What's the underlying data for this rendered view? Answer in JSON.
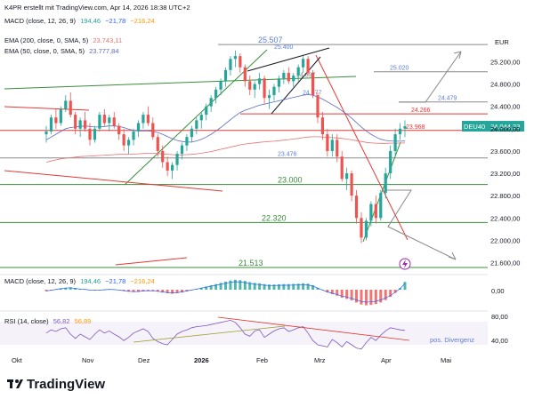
{
  "header": {
    "author_line": "K4PR erstellt mit TradingView.com, Apr 14, 2026 18:38 UTC+2",
    "macd_label": "MACD (close, 12, 26, 9)",
    "macd_values": [
      "194,46",
      "−21,78",
      "−216,24"
    ],
    "ema200_label": "EMA (200, close, 0, SMA, 5)",
    "ema200_value": "23.743,11",
    "ema50_label": "EMA (50, close, 0, SMA, 5)",
    "ema50_value": "23.777,84"
  },
  "panes": {
    "macd_label": "MACD (close, 12, 26, 9)",
    "macd_values": [
      "194,46",
      "−21,78",
      "−216,24"
    ],
    "macd_zero_tick": "0,00",
    "rsi_label": "RSI (14, close)",
    "rsi_values": [
      "56,82",
      "56,89"
    ],
    "rsi_ticks": [
      "80,00",
      "40,00"
    ],
    "rsi_note": "pos. Divergenz"
  },
  "brand": {
    "name": "TradingView"
  },
  "colors": {
    "up": "#26a69a",
    "down": "#ef5350",
    "ema200": "#e57373",
    "ema50": "#5c6bc0",
    "green_line": "#388e3c",
    "red_line": "#e53935",
    "grey": "#8a8a8a",
    "blue_text": "#5b7fd6",
    "rsi_purple": "#7e57c2"
  },
  "icons": {
    "alert": "lightning-icon"
  },
  "chart_data": {
    "type": "candlestick",
    "symbol": "DEU40",
    "last_price": "24.044,23",
    "currency": "EUR",
    "x_ticks": [
      "Okt",
      "Nov",
      "Dez",
      "2026",
      "Feb",
      "Mrz",
      "Apr",
      "Mai"
    ],
    "y_ticks": [
      25200,
      24800,
      24400,
      24000,
      23600,
      23200,
      22800,
      22400,
      22000,
      21600
    ],
    "y_tick_labels": [
      "25.200,00",
      "24.800,00",
      "24.400,00",
      "24.000,00",
      "23.600,00",
      "23.200,00",
      "22.800,00",
      "22.400,00",
      "22.000,00",
      "21.600,00"
    ],
    "ylim": [
      21450,
      25700
    ],
    "levels": [
      {
        "label": "25.507",
        "value": 25507
      },
      {
        "label": "25.400",
        "value": 25400
      },
      {
        "label": "25.020",
        "value": 25020
      },
      {
        "label": "24.897",
        "value": 24897
      },
      {
        "label": "24.577",
        "value": 24577
      },
      {
        "label": "24.479",
        "value": 24479
      },
      {
        "label": "24.266",
        "value": 24266
      },
      {
        "label": "23.968",
        "value": 23968
      },
      {
        "label": "23.476",
        "value": 23476
      },
      {
        "label": "23.000",
        "value": 23000
      },
      {
        "label": "22.320",
        "value": 22320
      },
      {
        "label": "21.513",
        "value": 21513
      }
    ],
    "candles": [
      [
        23900,
        24050,
        23750,
        23950
      ],
      [
        23950,
        24250,
        23900,
        24200
      ],
      [
        24200,
        24350,
        24000,
        24100
      ],
      [
        24100,
        24400,
        24050,
        24350
      ],
      [
        24350,
        24600,
        24300,
        24500
      ],
      [
        24500,
        24650,
        24200,
        24250
      ],
      [
        24250,
        24300,
        23900,
        24000
      ],
      [
        24000,
        24200,
        23850,
        24150
      ],
      [
        24150,
        24300,
        23950,
        24000
      ],
      [
        24000,
        24100,
        23700,
        23800
      ],
      [
        23800,
        24050,
        23750,
        24000
      ],
      [
        24000,
        24300,
        23950,
        24250
      ],
      [
        24250,
        24350,
        24050,
        24100
      ],
      [
        24100,
        24250,
        23950,
        24200
      ],
      [
        24200,
        24300,
        24000,
        24050
      ],
      [
        24050,
        24100,
        23800,
        23900
      ],
      [
        23900,
        24000,
        23600,
        23700
      ],
      [
        23700,
        23850,
        23550,
        23800
      ],
      [
        23800,
        24000,
        23700,
        23950
      ],
      [
        23950,
        24150,
        23850,
        24100
      ],
      [
        24100,
        24300,
        24000,
        24250
      ],
      [
        24250,
        24400,
        24050,
        24100
      ],
      [
        24100,
        24200,
        23800,
        23850
      ],
      [
        23850,
        23900,
        23500,
        23600
      ],
      [
        23600,
        23700,
        23300,
        23400
      ],
      [
        23400,
        23500,
        23150,
        23250
      ],
      [
        23250,
        23400,
        23100,
        23350
      ],
      [
        23350,
        23600,
        23250,
        23550
      ],
      [
        23550,
        23750,
        23450,
        23700
      ],
      [
        23700,
        23900,
        23600,
        23850
      ],
      [
        23850,
        24050,
        23750,
        24000
      ],
      [
        24000,
        24200,
        23900,
        24150
      ],
      [
        24150,
        24300,
        24000,
        24250
      ],
      [
        24250,
        24450,
        24150,
        24400
      ],
      [
        24400,
        24600,
        24300,
        24550
      ],
      [
        24550,
        24750,
        24450,
        24700
      ],
      [
        24700,
        24900,
        24600,
        24850
      ],
      [
        24850,
        25100,
        24750,
        25050
      ],
      [
        25050,
        25300,
        24950,
        25250
      ],
      [
        25250,
        25400,
        25100,
        25300
      ],
      [
        25300,
        25350,
        25000,
        25100
      ],
      [
        25100,
        25150,
        24750,
        24850
      ],
      [
        24850,
        24950,
        24600,
        24700
      ],
      [
        24700,
        24850,
        24550,
        24800
      ],
      [
        24800,
        25000,
        24700,
        24900
      ],
      [
        24900,
        24950,
        24450,
        24550
      ],
      [
        24550,
        24700,
        24350,
        24600
      ],
      [
        24600,
        24800,
        24500,
        24750
      ],
      [
        24750,
        24950,
        24650,
        24900
      ],
      [
        24900,
        25050,
        24800,
        25000
      ],
      [
        25000,
        25100,
        24800,
        24850
      ],
      [
        24850,
        25000,
        24750,
        24950
      ],
      [
        24950,
        25150,
        24850,
        25100
      ],
      [
        25100,
        25300,
        25000,
        25250
      ],
      [
        25250,
        25300,
        24950,
        25000
      ],
      [
        25000,
        25050,
        24550,
        24600
      ],
      [
        24600,
        24650,
        24100,
        24200
      ],
      [
        24200,
        24300,
        23800,
        23900
      ],
      [
        23900,
        24000,
        23500,
        23600
      ],
      [
        23600,
        23900,
        23500,
        23800
      ],
      [
        23800,
        23900,
        23400,
        23500
      ],
      [
        23500,
        23600,
        23050,
        23100
      ],
      [
        23100,
        23300,
        22900,
        23200
      ],
      [
        23200,
        23250,
        22700,
        22800
      ],
      [
        22800,
        22900,
        22300,
        22400
      ],
      [
        22400,
        22500,
        21950,
        22050
      ],
      [
        22050,
        22400,
        22000,
        22350
      ],
      [
        22350,
        22700,
        22250,
        22650
      ],
      [
        22650,
        22800,
        22300,
        22400
      ],
      [
        22400,
        22900,
        22350,
        22850
      ],
      [
        22850,
        23300,
        22750,
        23200
      ],
      [
        23200,
        23700,
        23100,
        23600
      ],
      [
        23600,
        24000,
        23500,
        23900
      ],
      [
        23900,
        24100,
        23800,
        24000
      ],
      [
        24000,
        24150,
        23850,
        24044
      ]
    ],
    "macd": [
      -40,
      -20,
      10,
      30,
      50,
      60,
      40,
      20,
      10,
      -10,
      -20,
      -15,
      0,
      10,
      5,
      -10,
      -30,
      -50,
      -60,
      -55,
      -40,
      -30,
      -35,
      -50,
      -70,
      -90,
      -100,
      -90,
      -70,
      -40,
      -10,
      20,
      50,
      80,
      110,
      140,
      170,
      200,
      230,
      250,
      240,
      220,
      190,
      170,
      160,
      140,
      130,
      130,
      135,
      140,
      140,
      145,
      150,
      160,
      150,
      110,
      50,
      -10,
      -70,
      -110,
      -150,
      -200,
      -230,
      -270,
      -320,
      -370,
      -390,
      -380,
      -360,
      -320,
      -260,
      -180,
      -80,
      40,
      194
    ],
    "rsi": [
      52,
      58,
      55,
      60,
      62,
      50,
      42,
      50,
      45,
      40,
      50,
      58,
      52,
      56,
      50,
      45,
      38,
      44,
      52,
      56,
      60,
      55,
      42,
      36,
      32,
      30,
      40,
      50,
      55,
      58,
      62,
      64,
      65,
      66,
      68,
      70,
      72,
      74,
      76,
      72,
      62,
      50,
      46,
      56,
      58,
      44,
      50,
      56,
      60,
      62,
      55,
      58,
      62,
      64,
      52,
      38,
      30,
      28,
      26,
      40,
      34,
      26,
      36,
      30,
      24,
      22,
      34,
      44,
      38,
      48,
      56,
      62,
      60,
      58,
      57
    ]
  }
}
